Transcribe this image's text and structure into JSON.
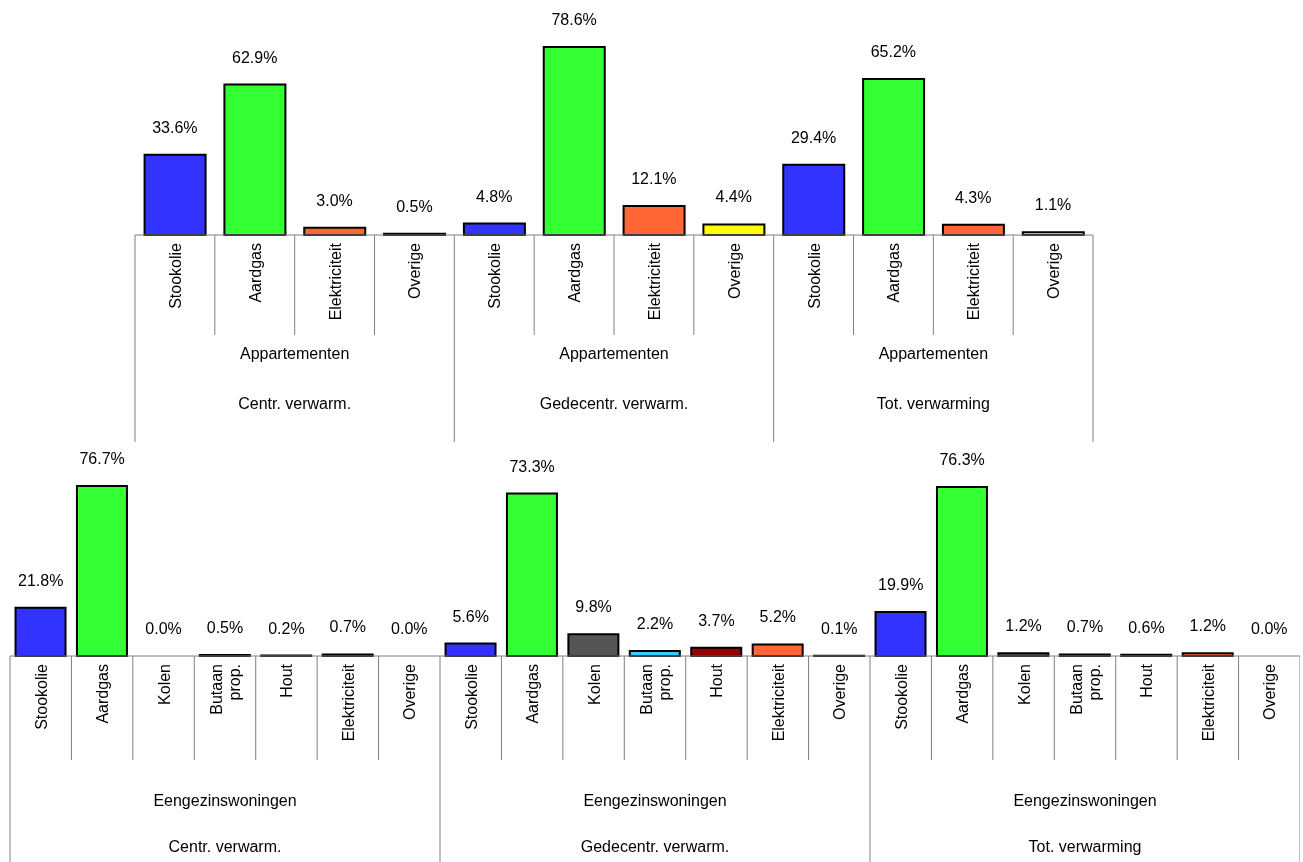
{
  "chart_data": [
    {
      "type": "bar",
      "categories": [
        "Stookolie",
        "Aardgas",
        "Elektriciteit",
        "Overige",
        "Stookolie",
        "Aardgas",
        "Elektriciteit",
        "Overige",
        "Stookolie",
        "Aardgas",
        "Elektriciteit",
        "Overige"
      ],
      "values": [
        33.6,
        62.9,
        3.0,
        0.5,
        4.8,
        78.6,
        12.1,
        4.4,
        29.4,
        65.2,
        4.3,
        1.1
      ],
      "value_labels": [
        "33.6%",
        "62.9%",
        "3.0%",
        "0.5%",
        "4.8%",
        "78.6%",
        "12.1%",
        "4.4%",
        "29.4%",
        "65.2%",
        "4.3%",
        "1.1%"
      ],
      "colors": [
        "#3333ff",
        "#33ff33",
        "#ff6633",
        "#ffff00",
        "#3333ff",
        "#33ff33",
        "#ff6633",
        "#ffff00",
        "#3333ff",
        "#33ff33",
        "#ff6633",
        "#ffff00"
      ],
      "annotations": [
        "Appartementen",
        "Centr. verwarm.",
        "Appartementen",
        "Gedecentr. verwarm.",
        "Appartementen",
        "Tot. verwarming"
      ],
      "legend": false
    },
    {
      "type": "bar",
      "categories": [
        "Stookolie",
        "Aardgas",
        "Kolen",
        "Butaan prop.",
        "Hout",
        "Elektriciteit",
        "Overige",
        "Stookolie",
        "Aardgas",
        "Kolen",
        "Butaan prop.",
        "Hout",
        "Elektriciteit",
        "Overige",
        "Stookolie",
        "Aardgas",
        "Kolen",
        "Butaan prop.",
        "Hout",
        "Elektriciteit",
        "Overige"
      ],
      "values": [
        21.8,
        76.7,
        0.0,
        0.5,
        0.2,
        0.7,
        0.0,
        5.6,
        73.3,
        9.8,
        2.2,
        3.7,
        5.2,
        0.1,
        19.9,
        76.3,
        1.2,
        0.7,
        0.6,
        1.2,
        0.0
      ],
      "value_labels": [
        "21.8%",
        "76.7%",
        "0.0%",
        "0.5%",
        "0.2%",
        "0.7%",
        "0.0%",
        "5.6%",
        "73.3%",
        "9.8%",
        "2.2%",
        "3.7%",
        "5.2%",
        "0.1%",
        "19.9%",
        "76.3%",
        "1.2%",
        "0.7%",
        "0.6%",
        "1.2%",
        "0.0%"
      ],
      "colors": [
        "#3333ff",
        "#33ff33",
        "#555555",
        "#33ccff",
        "#990000",
        "#ff6633",
        "#ffff00",
        "#3333ff",
        "#33ff33",
        "#555555",
        "#33ccff",
        "#990000",
        "#ff6633",
        "#ffff00",
        "#3333ff",
        "#33ff33",
        "#555555",
        "#33ccff",
        "#990000",
        "#ff6633",
        "#ffff00"
      ],
      "annotations": [
        "Eengezinswoningen",
        "Centr. verwarm.",
        "Eengezinswoningen",
        "Gedecentr. verwarm.",
        "Eengezinswoningen",
        "Tot. verwarming"
      ],
      "legend": false
    }
  ]
}
